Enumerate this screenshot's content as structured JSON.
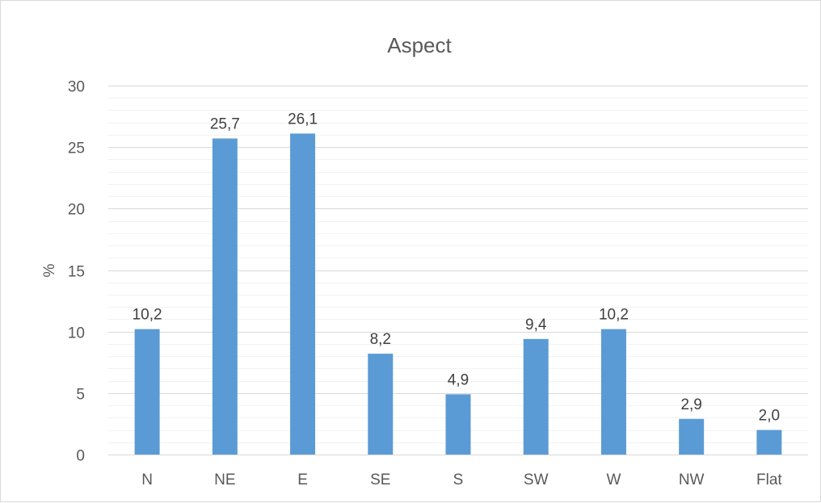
{
  "chart_data": {
    "type": "bar",
    "title": "Aspect",
    "xlabel": "",
    "ylabel": "%",
    "categories": [
      "N",
      "NE",
      "E",
      "SE",
      "S",
      "SW",
      "W",
      "NW",
      "Flat"
    ],
    "values": [
      10.2,
      25.7,
      26.1,
      8.2,
      4.9,
      9.4,
      10.2,
      2.9,
      2.0
    ],
    "data_labels": [
      "10,2",
      "25,7",
      "26,1",
      "8,2",
      "4,9",
      "9,4",
      "10,2",
      "2,9",
      "2,0"
    ],
    "ylim": [
      0,
      30
    ],
    "yticks": [
      0,
      5,
      10,
      15,
      20,
      25,
      30
    ],
    "grid": true,
    "minor_grid": true,
    "legend": "none",
    "bar_color": "#5b9bd5"
  }
}
